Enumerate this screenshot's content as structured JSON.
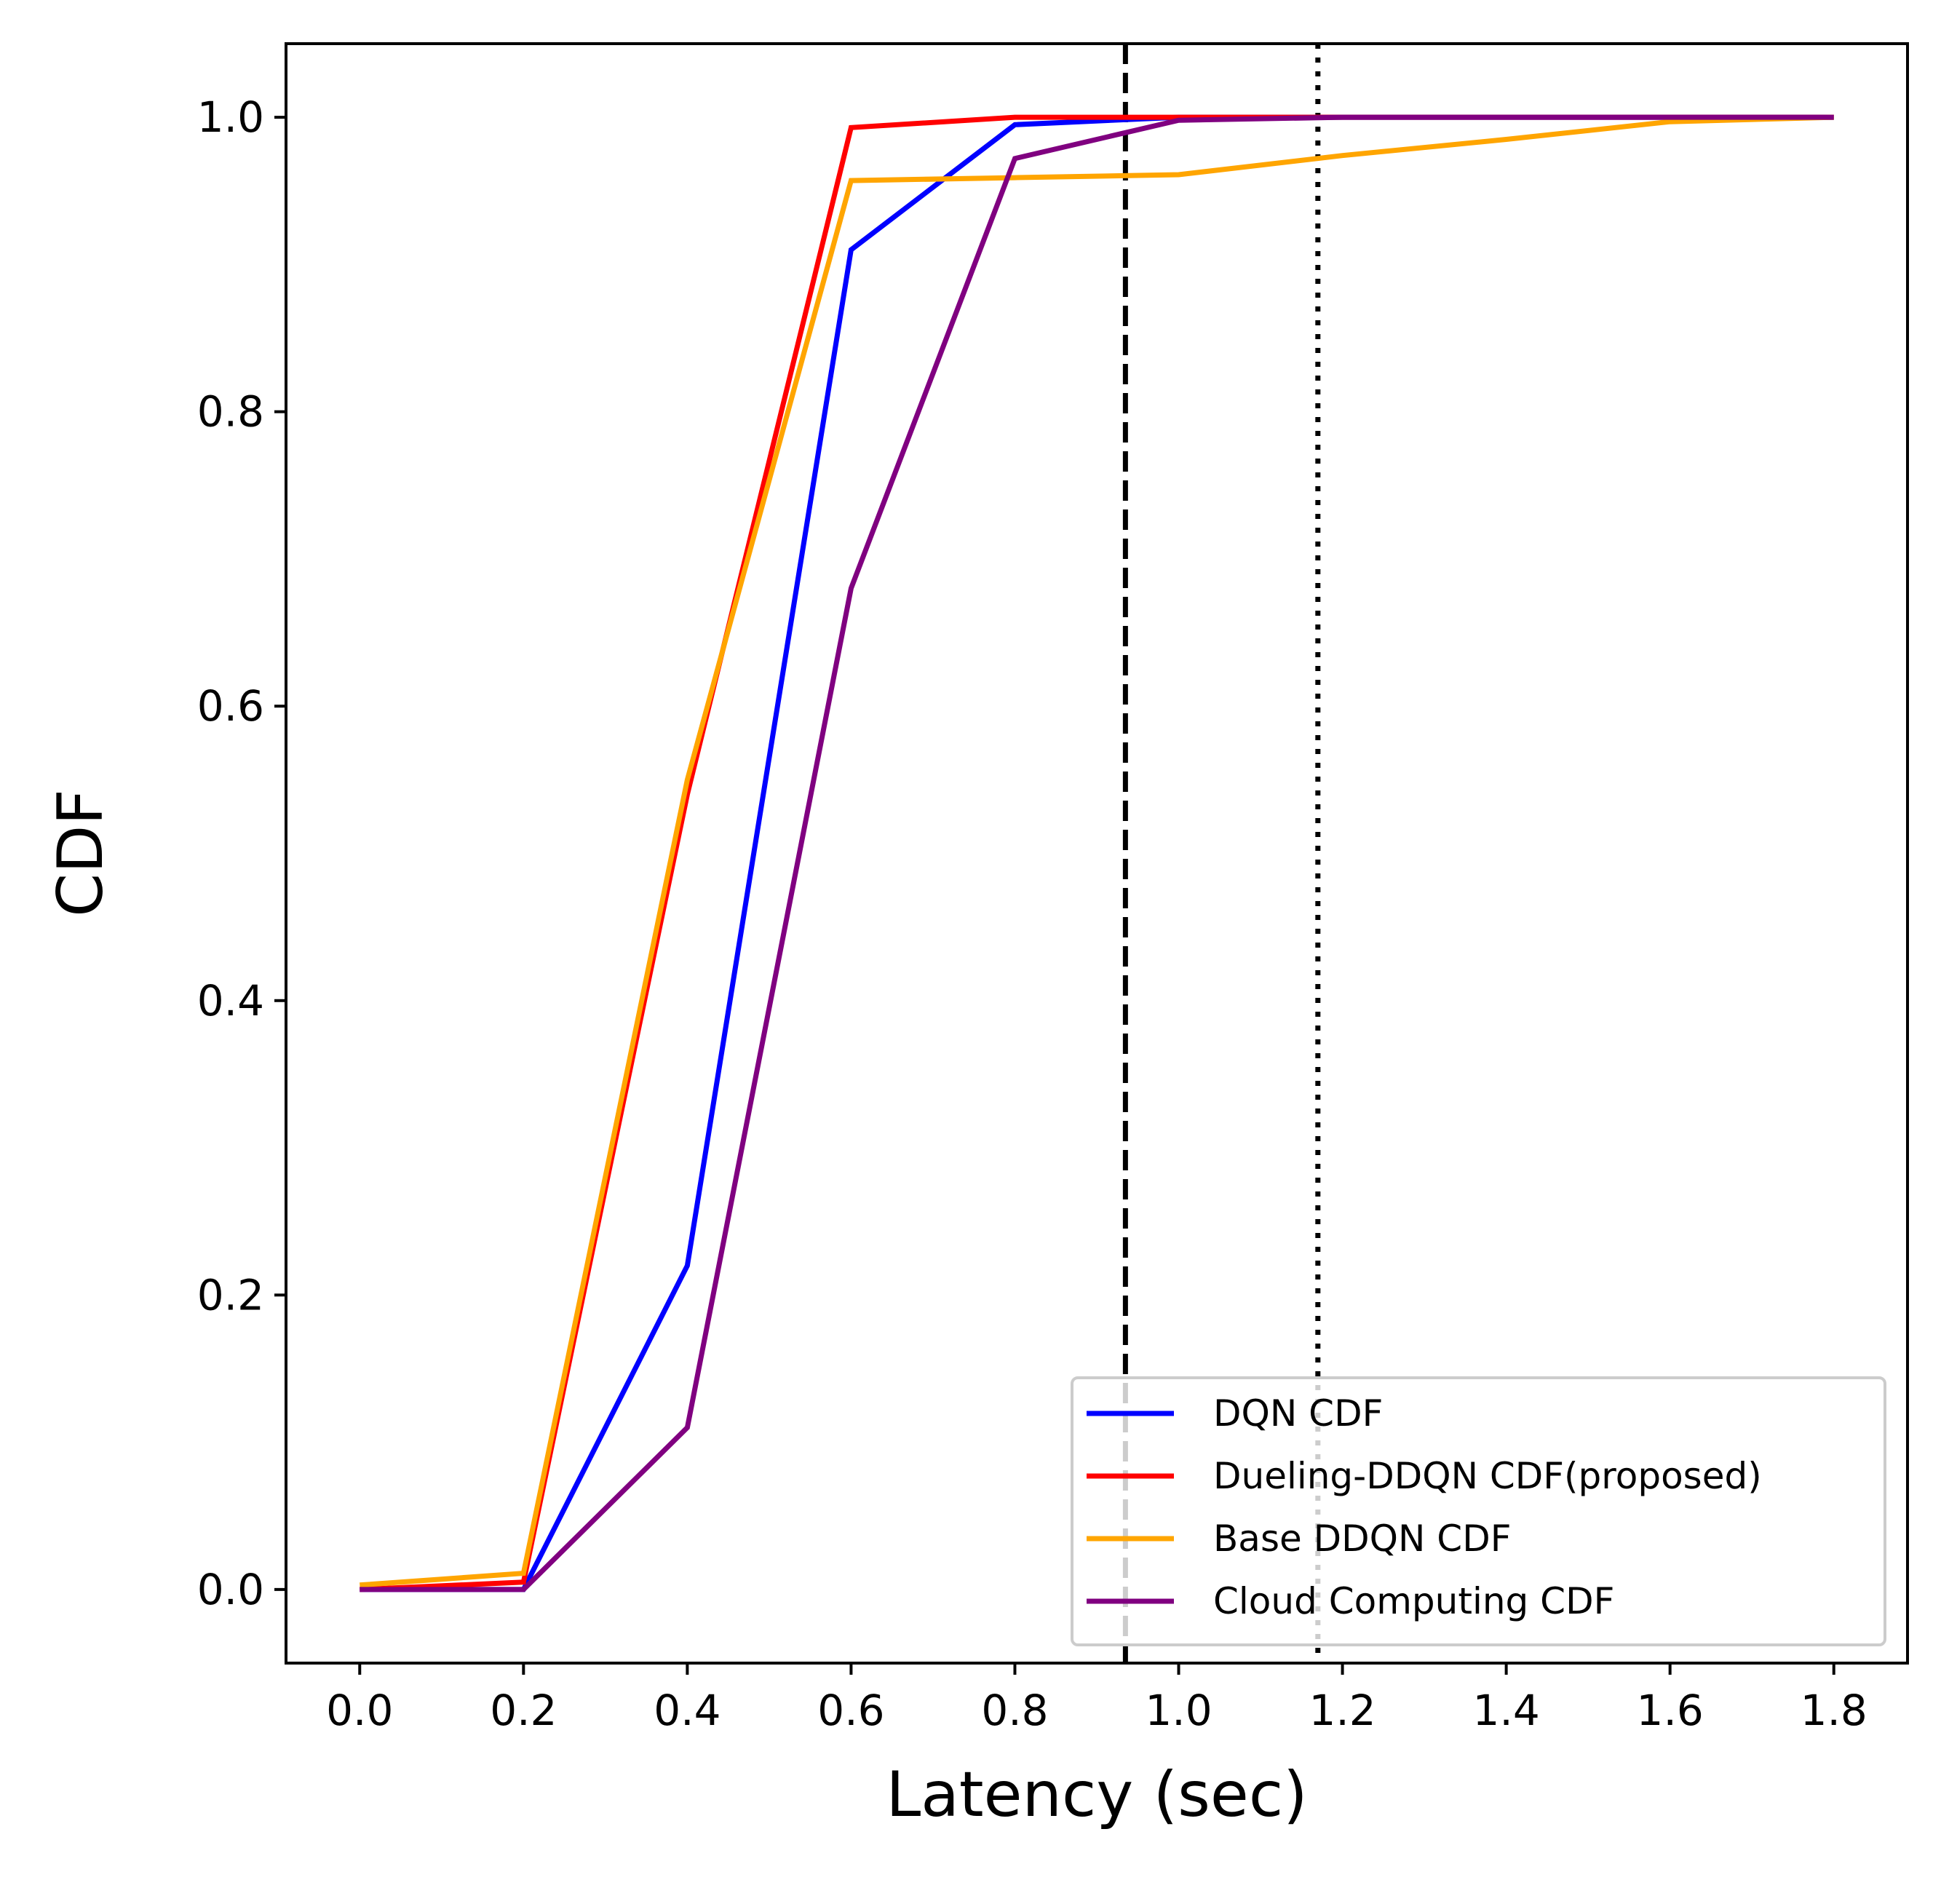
{
  "chart_data": {
    "type": "line",
    "xlabel": "Latency (sec)",
    "ylabel": "CDF",
    "xlim": [
      -0.09,
      1.89
    ],
    "ylim": [
      -0.05,
      1.05
    ],
    "xticks": [
      "0.0",
      "0.2",
      "0.4",
      "0.6",
      "0.8",
      "1.0",
      "1.2",
      "1.4",
      "1.6",
      "1.8"
    ],
    "yticks": [
      "0.0",
      "0.2",
      "0.4",
      "0.6",
      "0.8",
      "1.0"
    ],
    "grid": false,
    "legend_position": "lower-right",
    "x": [
      0.0,
      0.2,
      0.4,
      0.6,
      0.8,
      1.0,
      1.2,
      1.4,
      1.6,
      1.8
    ],
    "series": [
      {
        "name": "DQN  CDF",
        "color": "#0000ff",
        "values": [
          0.0,
          0.0,
          0.22,
          0.91,
          0.995,
          1.0,
          1.0,
          1.0,
          1.0,
          1.0
        ]
      },
      {
        "name": "Dueling-DDQN  CDF(proposed)",
        "color": "#ff0000",
        "values": [
          0.0,
          0.005,
          0.54,
          0.993,
          1.0,
          1.0,
          1.0,
          1.0,
          1.0,
          1.0
        ]
      },
      {
        "name": "Base DDQN  CDF",
        "color": "#ffa500",
        "values": [
          0.003,
          0.011,
          0.55,
          0.957,
          0.959,
          0.961,
          0.974,
          0.985,
          0.997,
          1.0
        ]
      },
      {
        "name": "Cloud Computing CDF",
        "color": "#800080",
        "values": [
          0.0,
          0.0,
          0.11,
          0.68,
          0.972,
          0.998,
          1.0,
          1.0,
          1.0,
          1.0
        ]
      }
    ],
    "reference_lines": [
      {
        "x": 0.935,
        "style": "dashed",
        "color": "#000000"
      },
      {
        "x": 1.17,
        "style": "dotted",
        "color": "#000000"
      }
    ]
  }
}
